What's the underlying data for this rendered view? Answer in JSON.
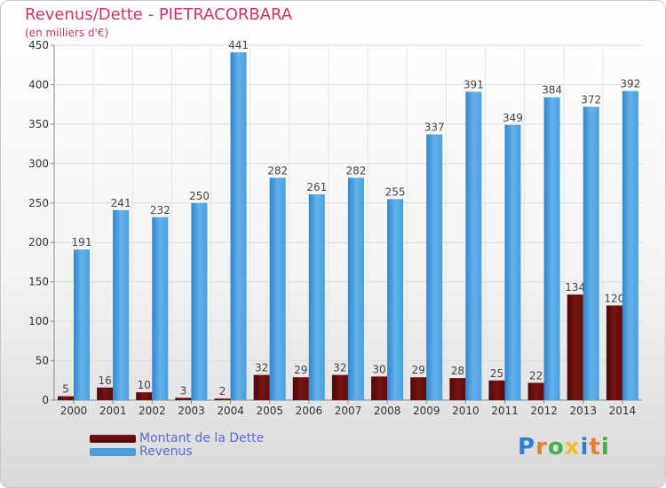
{
  "title": "Revenus/Dette - PIETRACORBARA",
  "subtitle": "(en milliers d'€)",
  "colors": {
    "dette": "#7a1412",
    "revenus": "#4a9fe0",
    "text": "#c8336b",
    "legend_text": "#5a6dd6"
  },
  "legend": {
    "dette_label": "Montant de la Dette",
    "revenus_label": "Revenus"
  },
  "logo": "Proxiti",
  "chart_data": {
    "type": "bar",
    "categories": [
      "2000",
      "2001",
      "2002",
      "2003",
      "2004",
      "2005",
      "2006",
      "2007",
      "2008",
      "2009",
      "2010",
      "2011",
      "2012",
      "2013",
      "2014"
    ],
    "series": [
      {
        "name": "Montant de la Dette",
        "values": [
          5,
          16,
          10,
          3,
          2,
          32,
          29,
          32,
          30,
          29,
          28,
          25,
          22,
          134,
          120
        ]
      },
      {
        "name": "Revenus",
        "values": [
          191,
          241,
          232,
          250,
          441,
          282,
          261,
          282,
          255,
          337,
          391,
          349,
          384,
          372,
          392
        ]
      }
    ],
    "ylim": [
      0,
      450
    ],
    "yticks": [
      0,
      50,
      100,
      150,
      200,
      250,
      300,
      350,
      400,
      450
    ],
    "grid": true,
    "legend_position": "bottom-left"
  }
}
